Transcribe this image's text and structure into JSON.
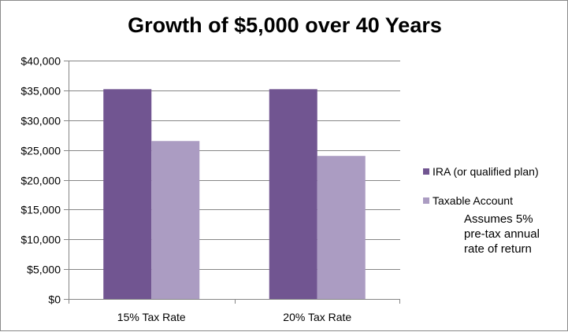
{
  "chart_data": {
    "type": "bar",
    "title": "Growth of $5,000 over 40 Years",
    "xlabel": "",
    "ylabel": "",
    "categories": [
      "15% Tax Rate",
      "20% Tax Rate"
    ],
    "series": [
      {
        "name": "IRA (or qualified plan)",
        "values": [
          35200,
          35200
        ],
        "color": "#715591"
      },
      {
        "name": "Taxable Account",
        "values": [
          26500,
          24000
        ],
        "color": "#ab9cc2"
      }
    ],
    "ylim": [
      0,
      40000
    ],
    "yticks": [
      0,
      5000,
      10000,
      15000,
      20000,
      25000,
      30000,
      35000,
      40000
    ],
    "ytick_labels": [
      "$0",
      "$5,000",
      "$10,000",
      "$15,000",
      "$20,000",
      "$25,000",
      "$30,000",
      "$35,000",
      "$40,000"
    ],
    "grid": true,
    "legend_position": "right",
    "annotation": [
      "Assumes 5%",
      "pre-tax annual",
      "rate of return"
    ],
    "gridline_color": "#868686"
  }
}
